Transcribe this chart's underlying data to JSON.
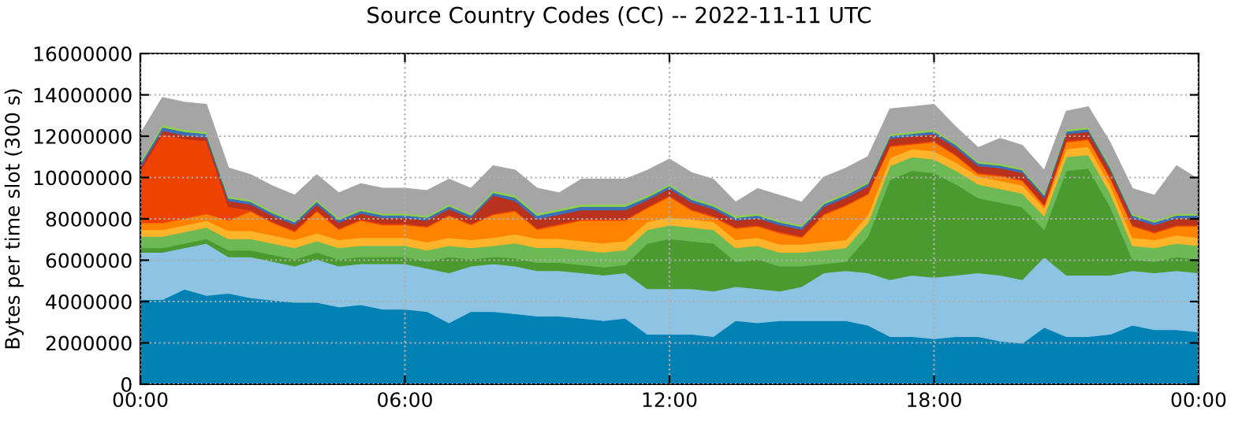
{
  "chart_data": {
    "type": "area",
    "stacked": true,
    "title": "Source Country Codes (CC) -- 2022-11-11 UTC",
    "ylabel": "Bytes per time slot (300 s)",
    "x": [
      0,
      0.5,
      1,
      1.5,
      2,
      2.5,
      3,
      3.5,
      4,
      4.5,
      5,
      5.5,
      6,
      6.5,
      7,
      7.5,
      8,
      8.5,
      9,
      9.5,
      10,
      10.5,
      11,
      11.5,
      12,
      12.5,
      13,
      13.5,
      14,
      14.5,
      15,
      15.5,
      16,
      16.5,
      17,
      17.5,
      18,
      18.5,
      19,
      19.5,
      20,
      20.5,
      21,
      21.5,
      22,
      22.5,
      23,
      23.5,
      24
    ],
    "xlim": [
      0,
      24
    ],
    "xticks": [
      {
        "value": 0,
        "label": "00:00"
      },
      {
        "value": 6,
        "label": "06:00"
      },
      {
        "value": 12,
        "label": "12:00"
      },
      {
        "value": 18,
        "label": "18:00"
      },
      {
        "value": 24,
        "label": "00:00"
      }
    ],
    "ylim": [
      0,
      16000000
    ],
    "yticks": [
      0,
      2000000,
      4000000,
      6000000,
      8000000,
      10000000,
      12000000,
      14000000,
      16000000
    ],
    "grid": true,
    "series": [
      {
        "color": "#0081b4",
        "values": [
          4100000.0,
          4100000.0,
          4600000.0,
          4300000.0,
          4400000.0,
          4180000.0,
          4070000.0,
          3960000.0,
          3960000.0,
          3740000.0,
          3850000.0,
          3630000.0,
          3630000.0,
          3520000.0,
          2970000.0,
          3520000.0,
          3520000.0,
          3410000.0,
          3300000.0,
          3300000.0,
          3190000.0,
          3080000.0,
          3190000.0,
          2420000.0,
          2420000.0,
          2420000.0,
          2310000.0,
          3080000.0,
          2970000.0,
          3080000.0,
          3080000.0,
          3080000.0,
          3080000.0,
          2860000.0,
          2310000.0,
          2310000.0,
          2200000.0,
          2310000.0,
          2310000.0,
          2090000.0,
          1980000.0,
          2750000.0,
          2310000.0,
          2310000.0,
          2420000.0,
          2860000.0,
          2640000.0,
          2640000.0,
          2530000.0
        ]
      },
      {
        "color": "#8dc3e3",
        "values": [
          2280000.0,
          2280000.0,
          2000000.0,
          2520000.0,
          1760000.0,
          1980000.0,
          1870000.0,
          1760000.0,
          2090000.0,
          1980000.0,
          1980000.0,
          2200000.0,
          2200000.0,
          2090000.0,
          2420000.0,
          2200000.0,
          2310000.0,
          2310000.0,
          2200000.0,
          2200000.0,
          2200000.0,
          2200000.0,
          2200000.0,
          2200000.0,
          2200000.0,
          2200000.0,
          2200000.0,
          1650000.0,
          1650000.0,
          1430000.0,
          1650000.0,
          2310000.0,
          2420000.0,
          2530000.0,
          2750000.0,
          2970000.0,
          2970000.0,
          2970000.0,
          3080000.0,
          3190000.0,
          3080000.0,
          3410000.0,
          2970000.0,
          2970000.0,
          2860000.0,
          2640000.0,
          2750000.0,
          2860000.0,
          2860000.0
        ]
      },
      {
        "color": "#4b9a2f",
        "values": [
          220000.0,
          220000.0,
          220000.0,
          220000.0,
          330000.0,
          330000.0,
          330000.0,
          330000.0,
          330000.0,
          330000.0,
          330000.0,
          330000.0,
          330000.0,
          330000.0,
          770000.0,
          330000.0,
          330000.0,
          390000.0,
          390000.0,
          390000.0,
          390000.0,
          390000.0,
          390000.0,
          2200000.0,
          2420000.0,
          2310000.0,
          2310000.0,
          1210000.0,
          1430000.0,
          1210000.0,
          990000.0,
          440000.0,
          440000.0,
          1760000.0,
          4840000.0,
          5060000.0,
          5060000.0,
          4400000.0,
          3630000.0,
          3520000.0,
          3520000.0,
          1320000.0,
          5060000.0,
          5170000.0,
          3300000.0,
          550000.0,
          550000.0,
          660000.0,
          660000.0
        ]
      },
      {
        "color": "#6cb955",
        "values": [
          550000.0,
          550000.0,
          550000.0,
          550000.0,
          550000.0,
          550000.0,
          550000.0,
          550000.0,
          550000.0,
          550000.0,
          550000.0,
          550000.0,
          550000.0,
          550000.0,
          550000.0,
          550000.0,
          550000.0,
          720000.0,
          720000.0,
          720000.0,
          720000.0,
          720000.0,
          720000.0,
          660000.0,
          660000.0,
          660000.0,
          660000.0,
          660000.0,
          660000.0,
          660000.0,
          660000.0,
          660000.0,
          660000.0,
          660000.0,
          660000.0,
          660000.0,
          660000.0,
          660000.0,
          660000.0,
          660000.0,
          660000.0,
          660000.0,
          660000.0,
          660000.0,
          660000.0,
          660000.0,
          660000.0,
          660000.0,
          660000.0
        ]
      },
      {
        "color": "#fdb42a",
        "values": [
          330000.0,
          330000.0,
          330000.0,
          330000.0,
          390000.0,
          390000.0,
          390000.0,
          390000.0,
          390000.0,
          390000.0,
          390000.0,
          390000.0,
          390000.0,
          390000.0,
          390000.0,
          390000.0,
          390000.0,
          440000.0,
          440000.0,
          440000.0,
          440000.0,
          440000.0,
          440000.0,
          390000.0,
          390000.0,
          390000.0,
          390000.0,
          390000.0,
          390000.0,
          390000.0,
          390000.0,
          390000.0,
          390000.0,
          390000.0,
          390000.0,
          390000.0,
          390000.0,
          390000.0,
          390000.0,
          390000.0,
          390000.0,
          390000.0,
          390000.0,
          390000.0,
          390000.0,
          390000.0,
          390000.0,
          390000.0,
          390000.0
        ]
      },
      {
        "color": "#fd8300",
        "values": [
          330000.0,
          330000.0,
          330000.0,
          330000.0,
          500000.0,
          940000.0,
          610000.0,
          390000.0,
          1050000.0,
          500000.0,
          830000.0,
          610000.0,
          610000.0,
          720000.0,
          1050000.0,
          720000.0,
          1100000.0,
          1100000.0,
          440000.0,
          660000.0,
          990000.0,
          1100000.0,
          990000.0,
          660000.0,
          990000.0,
          440000.0,
          220000.0,
          550000.0,
          550000.0,
          550000.0,
          330000.0,
          1320000.0,
          1650000.0,
          990000.0,
          550000.0,
          220000.0,
          440000.0,
          330000.0,
          110000.0,
          220000.0,
          220000.0,
          110000.0,
          330000.0,
          330000.0,
          330000.0,
          550000.0,
          330000.0,
          440000.0,
          550000.0
        ]
      },
      {
        "color": "#ee4200",
        "values": [
          2530000.0,
          4290000.0,
          3850000.0,
          3520000.0,
          660000.0,
          60000.0,
          60000.0,
          60000.0,
          60000.0,
          60000.0,
          60000.0,
          60000.0,
          60000.0,
          60000.0,
          60000.0,
          60000.0,
          60000.0,
          60000.0,
          60000.0,
          60000.0,
          60000.0,
          60000.0,
          60000.0,
          60000.0,
          60000.0,
          60000.0,
          60000.0,
          60000.0,
          60000.0,
          60000.0,
          60000.0,
          60000.0,
          60000.0,
          60000.0,
          60000.0,
          60000.0,
          60000.0,
          60000.0,
          60000.0,
          60000.0,
          60000.0,
          60000.0,
          60000.0,
          60000.0,
          60000.0,
          60000.0,
          60000.0,
          60000.0,
          60000.0
        ]
      },
      {
        "color": "#b8321e",
        "values": [
          170000.0,
          170000.0,
          170000.0,
          170000.0,
          280000.0,
          280000.0,
          280000.0,
          280000.0,
          280000.0,
          280000.0,
          280000.0,
          280000.0,
          280000.0,
          280000.0,
          280000.0,
          280000.0,
          880000.0,
          440000.0,
          440000.0,
          440000.0,
          440000.0,
          440000.0,
          440000.0,
          330000.0,
          330000.0,
          330000.0,
          330000.0,
          330000.0,
          330000.0,
          330000.0,
          330000.0,
          330000.0,
          330000.0,
          330000.0,
          330000.0,
          330000.0,
          330000.0,
          330000.0,
          330000.0,
          330000.0,
          330000.0,
          330000.0,
          330000.0,
          330000.0,
          330000.0,
          330000.0,
          330000.0,
          330000.0,
          330000.0
        ]
      },
      {
        "color": "#3d6fb6",
        "values": [
          170000.0,
          170000.0,
          170000.0,
          170000.0,
          130000.0,
          130000.0,
          130000.0,
          130000.0,
          130000.0,
          130000.0,
          130000.0,
          130000.0,
          130000.0,
          130000.0,
          130000.0,
          130000.0,
          130000.0,
          170000.0,
          170000.0,
          170000.0,
          170000.0,
          170000.0,
          170000.0,
          130000.0,
          130000.0,
          130000.0,
          130000.0,
          130000.0,
          130000.0,
          130000.0,
          130000.0,
          130000.0,
          130000.0,
          130000.0,
          130000.0,
          130000.0,
          130000.0,
          130000.0,
          130000.0,
          130000.0,
          130000.0,
          130000.0,
          130000.0,
          130000.0,
          130000.0,
          130000.0,
          130000.0,
          130000.0,
          130000.0
        ]
      },
      {
        "color": "#8fd14a",
        "values": [
          110000.0,
          110000.0,
          110000.0,
          110000.0,
          90000.0,
          90000.0,
          90000.0,
          90000.0,
          90000.0,
          90000.0,
          90000.0,
          90000.0,
          90000.0,
          90000.0,
          90000.0,
          90000.0,
          90000.0,
          110000.0,
          110000.0,
          110000.0,
          110000.0,
          110000.0,
          110000.0,
          90000.0,
          90000.0,
          90000.0,
          90000.0,
          90000.0,
          90000.0,
          90000.0,
          90000.0,
          90000.0,
          90000.0,
          90000.0,
          90000.0,
          90000.0,
          90000.0,
          90000.0,
          90000.0,
          90000.0,
          90000.0,
          90000.0,
          90000.0,
          90000.0,
          90000.0,
          90000.0,
          90000.0,
          90000.0,
          90000.0
        ]
      },
      {
        "color": "#a5a5a5",
        "values": [
          1320000.0,
          1320000.0,
          1320000.0,
          1320000.0,
          1380000.0,
          1210000.0,
          1210000.0,
          1210000.0,
          1210000.0,
          1210000.0,
          1210000.0,
          1210000.0,
          1210000.0,
          1210000.0,
          1210000.0,
          1210000.0,
          1210000.0,
          1210000.0,
          1210000.0,
          770000.0,
          1210000.0,
          1210000.0,
          1210000.0,
          1210000.0,
          1210000.0,
          1210000.0,
          1210000.0,
          660000.0,
          1210000.0,
          1210000.0,
          1100000.0,
          1210000.0,
          1210000.0,
          1210000.0,
          1210000.0,
          1210000.0,
          1210000.0,
          770000.0,
          660000.0,
          1210000.0,
          1100000.0,
          1100000.0,
          880000.0,
          990000.0,
          1100000.0,
          1210000.0,
          1210000.0,
          2310000.0,
          1650000.0
        ]
      }
    ]
  }
}
